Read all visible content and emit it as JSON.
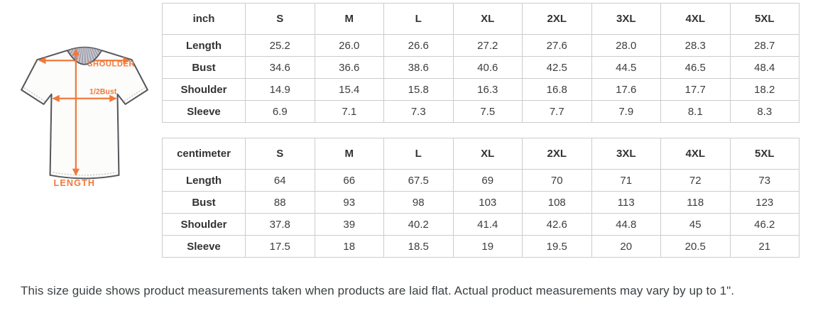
{
  "figure": {
    "labels": {
      "shoulder": "SHOULDER",
      "bust": "1/2Bust",
      "length": "LENGTH"
    },
    "accent_color": "#f0793a",
    "outline_color": "#55565a",
    "collar_color": "#c7c7d1"
  },
  "size_tables": [
    {
      "unit_label": "inch",
      "sizes": [
        "S",
        "M",
        "L",
        "XL",
        "2XL",
        "3XL",
        "4XL",
        "5XL"
      ],
      "rows": [
        {
          "label": "Length",
          "values": [
            "25.2",
            "26.0",
            "26.6",
            "27.2",
            "27.6",
            "28.0",
            "28.3",
            "28.7"
          ]
        },
        {
          "label": "Bust",
          "values": [
            "34.6",
            "36.6",
            "38.6",
            "40.6",
            "42.5",
            "44.5",
            "46.5",
            "48.4"
          ]
        },
        {
          "label": "Shoulder",
          "values": [
            "14.9",
            "15.4",
            "15.8",
            "16.3",
            "16.8",
            "17.6",
            "17.7",
            "18.2"
          ]
        },
        {
          "label": "Sleeve",
          "values": [
            "6.9",
            "7.1",
            "7.3",
            "7.5",
            "7.7",
            "7.9",
            "8.1",
            "8.3"
          ]
        }
      ]
    },
    {
      "unit_label": "centimeter",
      "sizes": [
        "S",
        "M",
        "L",
        "XL",
        "2XL",
        "3XL",
        "4XL",
        "5XL"
      ],
      "rows": [
        {
          "label": "Length",
          "values": [
            "64",
            "66",
            "67.5",
            "69",
            "70",
            "71",
            "72",
            "73"
          ]
        },
        {
          "label": "Bust",
          "values": [
            "88",
            "93",
            "98",
            "103",
            "108",
            "113",
            "118",
            "123"
          ]
        },
        {
          "label": "Shoulder",
          "values": [
            "37.8",
            "39",
            "40.2",
            "41.4",
            "42.6",
            "44.8",
            "45",
            "46.2"
          ]
        },
        {
          "label": "Sleeve",
          "values": [
            "17.5",
            "18",
            "18.5",
            "19",
            "19.5",
            "20",
            "20.5",
            "21"
          ]
        }
      ]
    }
  ],
  "footnote": "This size guide shows product measurements taken when products are laid flat. Actual product measurements may vary by up to 1\"."
}
